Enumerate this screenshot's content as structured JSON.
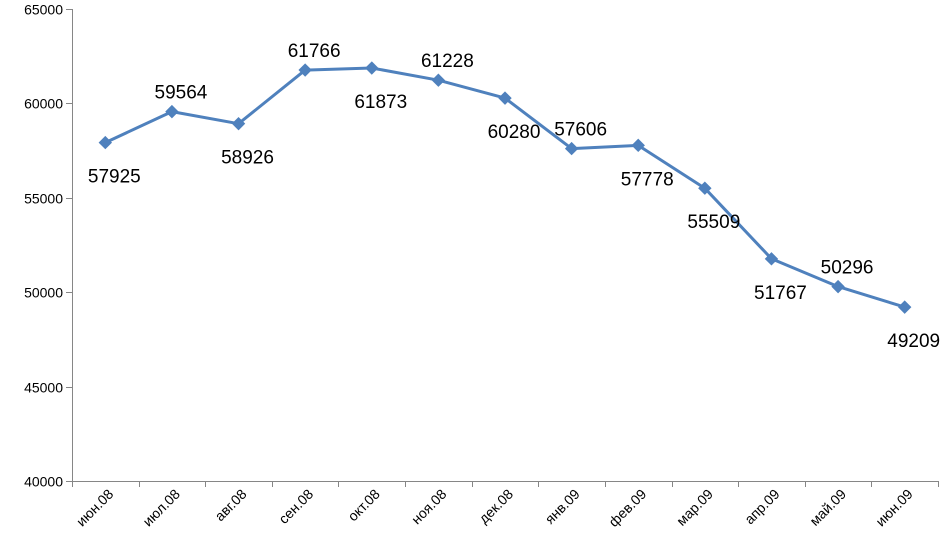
{
  "chart_data": {
    "type": "line",
    "title": "",
    "xlabel": "",
    "ylabel": "",
    "ylim": [
      40000,
      65000
    ],
    "ystep": 5000,
    "grid": false,
    "legend": "none",
    "categories": [
      "июн.08",
      "июл.08",
      "авг.08",
      "сен.08",
      "окт.08",
      "ноя.08",
      "дек.08",
      "янв.09",
      "фев.09",
      "мар.09",
      "апр.09",
      "май.09",
      "июн.09"
    ],
    "series": [
      {
        "color": "#4F81BD",
        "marker": "diamond",
        "values": [
          57925,
          59564,
          58926,
          61766,
          61873,
          61228,
          60280,
          57606,
          57778,
          55509,
          51767,
          50296,
          49209
        ],
        "data_labels": [
          "57925",
          "59564",
          "58926",
          "61766",
          "61873",
          "61228",
          "60280",
          "57606",
          "57778",
          "55509",
          "51767",
          "50296",
          "49209"
        ]
      }
    ],
    "y_tick_labels": [
      "40000",
      "45000",
      "50000",
      "55000",
      "60000",
      "65000"
    ]
  }
}
